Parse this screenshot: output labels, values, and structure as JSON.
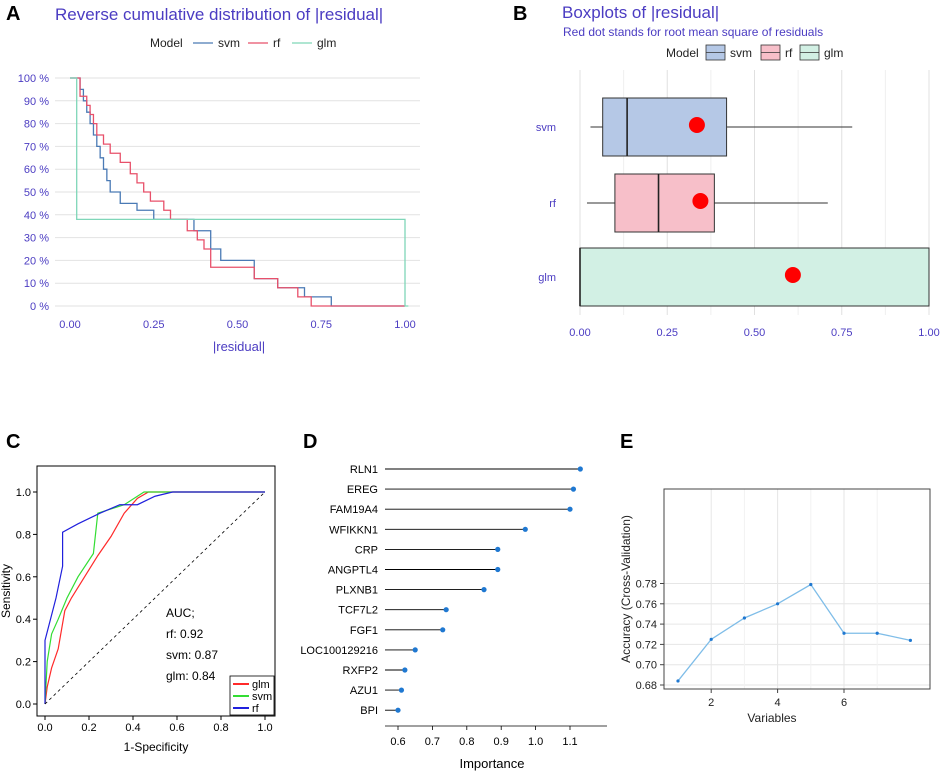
{
  "panel_labels": {
    "A": "A",
    "B": "B",
    "C": "C",
    "D": "D",
    "E": "E"
  },
  "colors": {
    "svm": "#4a7ab5",
    "rf": "#e8506a",
    "glm": "#7fd6b8",
    "svm_fill": "#b5c8e6",
    "rf_fill": "#f7bfc9",
    "glm_fill": "#d2f0e4",
    "title_purple": "#4b3cc2",
    "roc_glm": "#ff2a2a",
    "roc_svm": "#33dd33",
    "roc_rf": "#2020dd",
    "dot_blue": "#1f78d1",
    "line_light_blue": "#7fbde8",
    "rmse_dot": "#ff0000"
  },
  "chart_data": [
    {
      "type": "line",
      "panel": "A",
      "title": "Reverse cumulative distribution of |residual|",
      "xlabel": "|residual|",
      "ylabel": "",
      "legend_title": "Model",
      "xlim": [
        0,
        1
      ],
      "ylim": [
        0,
        100
      ],
      "xticks": [
        "0.00",
        "0.25",
        "0.50",
        "0.75",
        "1.00"
      ],
      "yticks": [
        "0 %",
        "10 %",
        "20 %",
        "30 %",
        "40 %",
        "50 %",
        "60 %",
        "70 %",
        "80 %",
        "90 %",
        "100 %"
      ],
      "series": [
        {
          "name": "svm",
          "x": [
            0,
            0.03,
            0.04,
            0.05,
            0.06,
            0.07,
            0.08,
            0.09,
            0.1,
            0.11,
            0.12,
            0.15,
            0.2,
            0.25,
            0.3,
            0.37,
            0.42,
            0.45,
            0.55,
            0.62,
            0.7,
            0.78,
            1.0
          ],
          "y": [
            100,
            95,
            90,
            85,
            80,
            75,
            70,
            65,
            60,
            55,
            50,
            45,
            42,
            38,
            38,
            33,
            25,
            20,
            12,
            8,
            4,
            0,
            0
          ]
        },
        {
          "name": "rf",
          "x": [
            0,
            0.03,
            0.05,
            0.06,
            0.07,
            0.08,
            0.1,
            0.12,
            0.15,
            0.18,
            0.2,
            0.22,
            0.24,
            0.28,
            0.3,
            0.35,
            0.38,
            0.4,
            0.42,
            0.55,
            0.62,
            0.68,
            0.72,
            1.0
          ],
          "y": [
            100,
            92,
            88,
            84,
            80,
            75,
            71,
            67,
            63,
            58,
            54,
            50,
            46,
            42,
            38,
            33,
            29,
            25,
            17,
            12,
            8,
            4,
            0,
            0
          ]
        },
        {
          "name": "glm",
          "x": [
            0,
            0.01,
            0.02,
            0.99,
            1.0,
            1.01
          ],
          "y": [
            100,
            100,
            38,
            38,
            0,
            0
          ]
        }
      ]
    },
    {
      "type": "box",
      "panel": "B",
      "title": "Boxplots of |residual|",
      "subtitle": "Red dot stands for root mean square of residuals",
      "legend_title": "Model",
      "xlim": [
        0,
        1
      ],
      "xticks": [
        "0.00",
        "0.25",
        "0.50",
        "0.75",
        "1.00"
      ],
      "categories": [
        "svm",
        "rf",
        "glm"
      ],
      "boxes": [
        {
          "name": "svm",
          "whisker_low": 0.03,
          "q1": 0.065,
          "median": 0.135,
          "q3": 0.42,
          "whisker_high": 0.78,
          "rmse": 0.335
        },
        {
          "name": "rf",
          "whisker_low": 0.02,
          "q1": 0.1,
          "median": 0.225,
          "q3": 0.385,
          "whisker_high": 0.71,
          "rmse": 0.345
        },
        {
          "name": "glm",
          "whisker_low": 0.0,
          "q1": 0.0,
          "median": 0.0,
          "q3": 1.0,
          "whisker_high": 1.0,
          "rmse": 0.61
        }
      ]
    },
    {
      "type": "line",
      "panel": "C",
      "title": "",
      "xlabel": "1-Specificity",
      "ylabel": "Sensitivity",
      "xlim": [
        0,
        1
      ],
      "ylim": [
        0,
        1
      ],
      "xticks": [
        "0.0",
        "0.2",
        "0.4",
        "0.6",
        "0.8",
        "1.0"
      ],
      "yticks": [
        "0.0",
        "0.2",
        "0.4",
        "0.6",
        "0.8",
        "1.0"
      ],
      "annotation": [
        "AUC;",
        "rf: 0.92",
        "svm: 0.87",
        "glm: 0.84"
      ],
      "series": [
        {
          "name": "glm",
          "x": [
            0,
            0.01,
            0.03,
            0.06,
            0.09,
            0.12,
            0.18,
            0.24,
            0.3,
            0.36,
            0.42,
            0.47,
            0.53,
            0.58,
            1.0
          ],
          "y": [
            0,
            0.08,
            0.17,
            0.26,
            0.44,
            0.5,
            0.6,
            0.7,
            0.79,
            0.9,
            0.97,
            1.0,
            1.0,
            1.0,
            1.0
          ]
        },
        {
          "name": "svm",
          "x": [
            0,
            0.01,
            0.03,
            0.06,
            0.1,
            0.15,
            0.22,
            0.24,
            0.3,
            0.36,
            0.42,
            0.45,
            0.58,
            1.0
          ],
          "y": [
            0,
            0.2,
            0.33,
            0.4,
            0.5,
            0.6,
            0.71,
            0.9,
            0.92,
            0.94,
            0.98,
            1.0,
            1.0,
            1.0
          ]
        },
        {
          "name": "rf",
          "x": [
            0,
            0,
            0.05,
            0.08,
            0.08,
            0.15,
            0.25,
            0.34,
            0.42,
            0.5,
            0.58,
            1.0
          ],
          "y": [
            0,
            0.3,
            0.5,
            0.65,
            0.81,
            0.85,
            0.9,
            0.94,
            0.94,
            0.98,
            1.0,
            1.0
          ]
        },
        {
          "name": "diagonal",
          "x": [
            0,
            1
          ],
          "y": [
            0,
            1
          ]
        }
      ]
    },
    {
      "type": "bar",
      "panel": "D",
      "title": "",
      "xlabel": "Importance",
      "ylabel": "",
      "xlim": [
        0.56,
        1.17
      ],
      "xticks": [
        "0.6",
        "0.7",
        "0.8",
        "0.9",
        "1.0",
        "1.1"
      ],
      "categories": [
        "RLN1",
        "EREG",
        "FAM19A4",
        "WFIKKN1",
        "CRP",
        "ANGPTL4",
        "PLXNB1",
        "TCF7L2",
        "FGF1",
        "LOC100129216",
        "RXFP2",
        "AZU1",
        "BPI"
      ],
      "values": [
        1.13,
        1.11,
        1.1,
        0.97,
        0.89,
        0.89,
        0.85,
        0.74,
        0.73,
        0.65,
        0.62,
        0.61,
        0.6
      ]
    },
    {
      "type": "line",
      "panel": "E",
      "title": "",
      "xlabel": "Variables",
      "ylabel": "Accuracy (Cross-Validation)",
      "xlim": [
        0.6,
        8.6
      ],
      "ylim": [
        0.675,
        0.789
      ],
      "xticks": [
        "2",
        "4",
        "6"
      ],
      "yticks": [
        "0.68",
        "0.70",
        "0.72",
        "0.74",
        "0.76",
        "0.78"
      ],
      "x": [
        1,
        2,
        3,
        4,
        5,
        6,
        7,
        8
      ],
      "values": [
        0.684,
        0.725,
        0.746,
        0.76,
        0.779,
        0.731,
        0.731,
        0.724
      ]
    }
  ]
}
